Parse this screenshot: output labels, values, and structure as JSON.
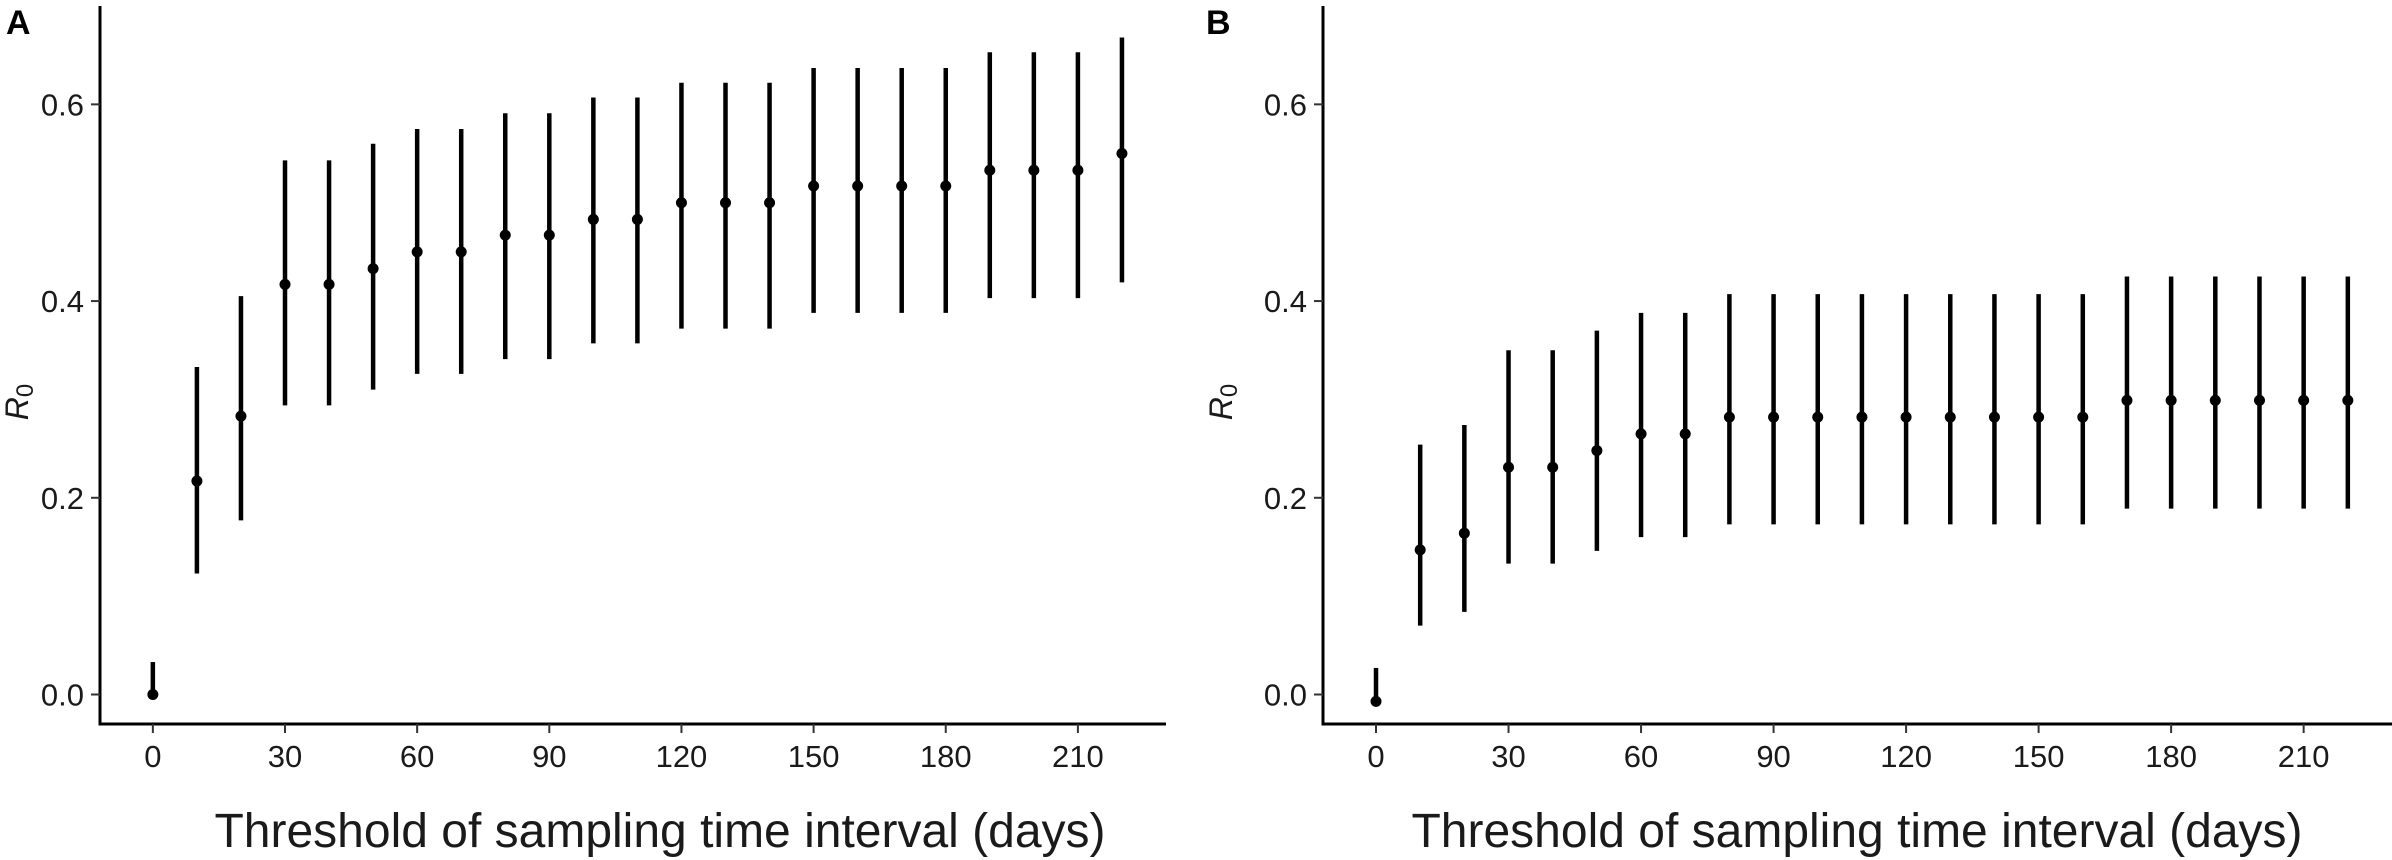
{
  "chart_data": [
    {
      "panel_label": "A",
      "type": "scatter",
      "xlabel": "Threshold of sampling time interval (days)",
      "ylabel_main": "R",
      "ylabel_sub": "0",
      "xlim": [
        -12,
        230
      ],
      "ylim": [
        -0.03,
        0.7
      ],
      "x_ticks": [
        0,
        30,
        60,
        90,
        120,
        150,
        180,
        210
      ],
      "y_ticks": [
        0.0,
        0.2,
        0.4,
        0.6
      ],
      "x_tick_labels": [
        "0",
        "30",
        "60",
        "90",
        "120",
        "150",
        "180",
        "210"
      ],
      "y_tick_labels": [
        "0.0",
        "0.2",
        "0.4",
        "0.6"
      ],
      "x": [
        0,
        10,
        20,
        30,
        40,
        50,
        60,
        70,
        80,
        90,
        100,
        110,
        120,
        130,
        140,
        150,
        160,
        170,
        180,
        190,
        200,
        210,
        220
      ],
      "y": [
        0.0,
        0.217,
        0.283,
        0.417,
        0.417,
        0.433,
        0.45,
        0.45,
        0.467,
        0.467,
        0.483,
        0.483,
        0.5,
        0.5,
        0.5,
        0.517,
        0.517,
        0.517,
        0.517,
        0.533,
        0.533,
        0.533,
        0.55
      ],
      "lower": [
        0.0,
        0.123,
        0.177,
        0.294,
        0.294,
        0.31,
        0.326,
        0.326,
        0.341,
        0.341,
        0.357,
        0.357,
        0.372,
        0.372,
        0.372,
        0.388,
        0.388,
        0.388,
        0.388,
        0.403,
        0.403,
        0.403,
        0.419
      ],
      "upper": [
        0.033,
        0.333,
        0.405,
        0.543,
        0.543,
        0.56,
        0.575,
        0.575,
        0.591,
        0.591,
        0.607,
        0.607,
        0.622,
        0.622,
        0.622,
        0.637,
        0.637,
        0.637,
        0.637,
        0.653,
        0.653,
        0.653,
        0.668
      ]
    },
    {
      "panel_label": "B",
      "type": "scatter",
      "xlabel": "Threshold of sampling time interval (days)",
      "ylabel_main": "R",
      "ylabel_sub": "0",
      "xlim": [
        -12,
        230
      ],
      "ylim": [
        -0.03,
        0.7
      ],
      "x_ticks": [
        0,
        30,
        60,
        90,
        120,
        150,
        180,
        210
      ],
      "y_ticks": [
        0.0,
        0.2,
        0.4,
        0.6
      ],
      "x_tick_labels": [
        "0",
        "30",
        "60",
        "90",
        "120",
        "150",
        "180",
        "210"
      ],
      "y_tick_labels": [
        "0.0",
        "0.2",
        "0.4",
        "0.6"
      ],
      "x": [
        0,
        10,
        20,
        30,
        40,
        50,
        60,
        70,
        80,
        90,
        100,
        110,
        120,
        130,
        140,
        150,
        160,
        170,
        180,
        190,
        200,
        210,
        220
      ],
      "y": [
        -0.007,
        0.147,
        0.164,
        0.231,
        0.231,
        0.248,
        0.265,
        0.265,
        0.282,
        0.282,
        0.282,
        0.282,
        0.282,
        0.282,
        0.282,
        0.282,
        0.282,
        0.299,
        0.299,
        0.299,
        0.299,
        0.299,
        0.299
      ],
      "lower": [
        -0.007,
        0.07,
        0.084,
        0.133,
        0.133,
        0.146,
        0.16,
        0.16,
        0.173,
        0.173,
        0.173,
        0.173,
        0.173,
        0.173,
        0.173,
        0.173,
        0.173,
        0.189,
        0.189,
        0.189,
        0.189,
        0.189,
        0.189
      ],
      "upper": [
        0.027,
        0.254,
        0.274,
        0.35,
        0.35,
        0.37,
        0.388,
        0.388,
        0.407,
        0.407,
        0.407,
        0.407,
        0.407,
        0.407,
        0.407,
        0.407,
        0.407,
        0.425,
        0.425,
        0.425,
        0.425,
        0.425,
        0.425
      ]
    }
  ]
}
